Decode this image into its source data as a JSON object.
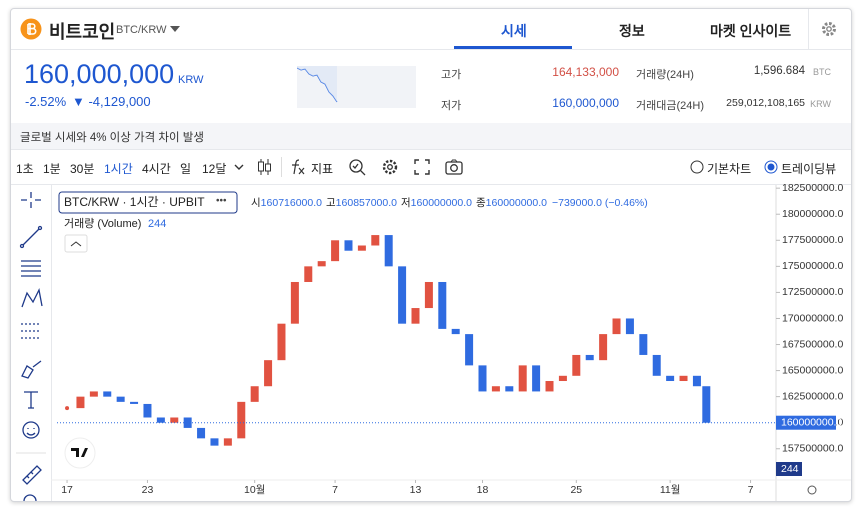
{
  "header": {
    "coin_name": "비트코인",
    "pair": "BTC/KRW"
  },
  "tabs": [
    "시세",
    "정보",
    "마켓 인사이트"
  ],
  "price": {
    "value": "160,000,000",
    "unit": "KRW",
    "change_rate": "-2.52%",
    "change_amount": "▼ -4,129,000"
  },
  "stats": [
    {
      "label": "고가",
      "value": "164,133,000"
    },
    {
      "label": "저가",
      "value": "160,000,000"
    },
    {
      "label": "거래량(24H)",
      "value": "1,596.684",
      "unit": "BTC"
    },
    {
      "label": "거래대금(24H)",
      "value": "259,012,108,165",
      "unit": "KRW"
    }
  ],
  "notice": "글로벌 시세와 4% 이상 가격 차이 발생",
  "toolbar": {
    "intervals": [
      "1초",
      "1분",
      "30분",
      "1시간",
      "4시간",
      "일",
      "12달"
    ],
    "indicator": "지표",
    "chart_modes": [
      "기본차트",
      "트레이딩뷰"
    ]
  },
  "chart": {
    "legend": {
      "symbol": "BTC/KRW · 1시간 · UPBIT",
      "ohlc": [
        {
          "label": "시",
          "value": "160716000.0"
        },
        {
          "label": "고",
          "value": "160857000.0"
        },
        {
          "label": "저",
          "value": "160000000.0"
        },
        {
          "label": "종",
          "value": "160000000.0"
        }
      ],
      "change": "−739000.0 (−0.46%)"
    },
    "volume_label": "거래량 (Volume)",
    "volume_value": "244",
    "price_tag": "160000000.0",
    "volume_tag": "244",
    "xlim": [
      -0.75,
      52.9
    ],
    "xticks": [
      {
        "value": 0,
        "label": "17"
      },
      {
        "value": 6,
        "label": "23"
      },
      {
        "value": 14,
        "label": "10월"
      },
      {
        "value": 20,
        "label": "7"
      },
      {
        "value": 26,
        "label": "13"
      },
      {
        "value": 31,
        "label": "18"
      },
      {
        "value": 38,
        "label": "25"
      },
      {
        "value": 45,
        "label": "11월"
      },
      {
        "value": 51,
        "label": "7"
      }
    ],
    "ylim": [
      154600000,
      182900000
    ],
    "yticks": [
      {
        "value": 157500000,
        "label": "157500000.0"
      },
      {
        "value": 160000000,
        "label": "160000000.0"
      },
      {
        "value": 162500000,
        "label": "162500000.0"
      },
      {
        "value": 165000000,
        "label": "165000000.0"
      },
      {
        "value": 167500000,
        "label": "167500000.0"
      },
      {
        "value": 170000000,
        "label": "170000000.0"
      },
      {
        "value": 172500000,
        "label": "172500000.0"
      },
      {
        "value": 175000000,
        "label": "175000000.0"
      },
      {
        "value": 177500000,
        "label": "177500000.0"
      },
      {
        "value": 180000000,
        "label": "180000000.0"
      },
      {
        "value": 182500000,
        "label": "182500000.0"
      }
    ],
    "x": [
      0,
      1,
      2,
      3,
      4,
      5,
      6,
      7,
      8,
      9,
      10,
      11,
      12,
      13,
      14,
      15,
      16,
      17,
      18,
      19,
      20,
      21,
      22,
      23,
      24,
      25,
      26,
      27,
      28,
      29,
      30,
      31,
      32,
      33,
      34,
      35,
      36,
      37,
      38,
      39,
      40,
      41,
      42,
      43,
      44,
      45,
      46,
      47,
      47.7
    ],
    "close": [
      161400000,
      162500000,
      163000000,
      162500000,
      162000000,
      161800000,
      160500000,
      160000000,
      160500000,
      159500000,
      158500000,
      157800000,
      158500000,
      162000000,
      163500000,
      166000000,
      169500000,
      173500000,
      175000000,
      175500000,
      177500000,
      176500000,
      177000000,
      178000000,
      175000000,
      169500000,
      171000000,
      173500000,
      169000000,
      168500000,
      165500000,
      163000000,
      163500000,
      163000000,
      165500000,
      163000000,
      164000000,
      164500000,
      166500000,
      166000000,
      168500000,
      170000000,
      168500000,
      166500000,
      164500000,
      164000000,
      164500000,
      163500000,
      160000000
    ],
    "up_color": "#e15241",
    "down_color": "#2f6be0"
  }
}
